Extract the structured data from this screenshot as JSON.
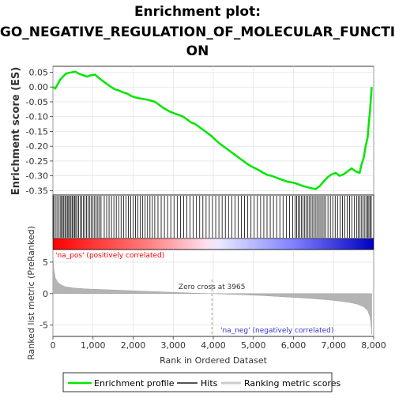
{
  "chart_data": {
    "type": "line",
    "title": "Enrichment plot:",
    "subtitle": "GO_NEGATIVE_REGULATION_OF_MOLECULAR_FUNCTION",
    "ylabel_top": "Enrichment score (ES)",
    "ylabel_bottom": "Ranked list metric (PreRanked)",
    "xlabel": "Rank in Ordered Dataset",
    "x_ticks": [
      0,
      1000,
      2000,
      3000,
      4000,
      5000,
      6000,
      7000,
      8000
    ],
    "x_tick_labels": [
      "0",
      "1,000",
      "2,000",
      "3,000",
      "4,000",
      "5,000",
      "6,000",
      "7,000",
      "8,000"
    ],
    "es_y_ticks": [
      0.05,
      0.0,
      -0.05,
      -0.1,
      -0.15,
      -0.2,
      -0.25,
      -0.3,
      -0.35
    ],
    "es_y_tick_labels": [
      "0.05",
      "0.00",
      "-0.05",
      "-0.10",
      "-0.15",
      "-0.20",
      "-0.25",
      "-0.30",
      "-0.35"
    ],
    "metric_y_ticks": [
      5,
      0,
      -5
    ],
    "metric_y_tick_labels": [
      "5",
      "0",
      "-5"
    ],
    "xlim": [
      0,
      8000
    ],
    "es_ylim": [
      -0.365,
      0.07
    ],
    "metric_ylim": [
      -6.8,
      7
    ],
    "grid": true,
    "series": [
      {
        "name": "Enrichment profile",
        "color": "#00e600",
        "x": [
          0,
          60,
          120,
          180,
          250,
          320,
          400,
          480,
          560,
          650,
          750,
          850,
          950,
          1050,
          1150,
          1250,
          1350,
          1450,
          1550,
          1650,
          1750,
          1850,
          1950,
          2050,
          2150,
          2250,
          2350,
          2450,
          2550,
          2650,
          2750,
          2850,
          2950,
          3050,
          3150,
          3250,
          3350,
          3450,
          3550,
          3650,
          3750,
          3850,
          3950,
          4050,
          4150,
          4250,
          4350,
          4450,
          4550,
          4650,
          4750,
          4850,
          4950,
          5050,
          5150,
          5250,
          5350,
          5450,
          5550,
          5650,
          5750,
          5850,
          5950,
          6050,
          6150,
          6250,
          6350,
          6450,
          6550,
          6650,
          6750,
          6850,
          6950,
          7050,
          7150,
          7250,
          7350,
          7450,
          7550,
          7650,
          7700,
          7750,
          7800,
          7850,
          7880,
          7910,
          7935,
          7950
        ],
        "values": [
          0.0,
          -0.005,
          0.01,
          0.025,
          0.035,
          0.045,
          0.048,
          0.05,
          0.052,
          0.045,
          0.04,
          0.035,
          0.04,
          0.042,
          0.03,
          0.02,
          0.01,
          0.0,
          -0.008,
          -0.012,
          -0.018,
          -0.022,
          -0.03,
          -0.035,
          -0.038,
          -0.04,
          -0.043,
          -0.046,
          -0.05,
          -0.06,
          -0.07,
          -0.078,
          -0.085,
          -0.09,
          -0.095,
          -0.1,
          -0.11,
          -0.12,
          -0.125,
          -0.135,
          -0.145,
          -0.155,
          -0.165,
          -0.178,
          -0.19,
          -0.2,
          -0.21,
          -0.22,
          -0.23,
          -0.24,
          -0.25,
          -0.26,
          -0.268,
          -0.275,
          -0.282,
          -0.29,
          -0.297,
          -0.3,
          -0.305,
          -0.31,
          -0.315,
          -0.32,
          -0.322,
          -0.325,
          -0.33,
          -0.335,
          -0.338,
          -0.342,
          -0.345,
          -0.335,
          -0.32,
          -0.305,
          -0.295,
          -0.29,
          -0.3,
          -0.295,
          -0.285,
          -0.275,
          -0.285,
          -0.29,
          -0.26,
          -0.24,
          -0.2,
          -0.17,
          -0.12,
          -0.08,
          -0.03,
          0.0
        ]
      }
    ],
    "hits": [
      20,
      60,
      100,
      140,
      180,
      210,
      240,
      270,
      300,
      330,
      360,
      390,
      420,
      450,
      480,
      510,
      540,
      570,
      600,
      640,
      680,
      720,
      760,
      800,
      840,
      880,
      920,
      960,
      1000,
      1040,
      1080,
      1120,
      1160,
      1200,
      1280,
      1340,
      1400,
      1460,
      1520,
      1580,
      1640,
      1700,
      1760,
      1820,
      1880,
      1940,
      2000,
      2060,
      2120,
      2180,
      2240,
      2300,
      2360,
      2420,
      2480,
      2540,
      2620,
      2700,
      2780,
      2860,
      2940,
      3020,
      3100,
      3180,
      3260,
      3340,
      3420,
      3500,
      3580,
      3660,
      3740,
      3820,
      3900,
      3980,
      4060,
      4140,
      4220,
      4300,
      4380,
      4460,
      4540,
      4620,
      4700,
      4780,
      4860,
      4940,
      5020,
      5100,
      5180,
      5260,
      5340,
      5420,
      5500,
      5580,
      5660,
      5740,
      5820,
      5900,
      5980,
      6040,
      6080,
      6120,
      6160,
      6200,
      6240,
      6280,
      6320,
      6360,
      6400,
      6440,
      6480,
      6520,
      6560,
      6600,
      6640,
      6680,
      6720,
      6760,
      6800,
      6860,
      6920,
      6980,
      7040,
      7100,
      7160,
      7220,
      7280,
      7340,
      7400,
      7460,
      7520,
      7580,
      7620,
      7660,
      7700,
      7740,
      7780,
      7820,
      7850,
      7880,
      7910,
      7940
    ],
    "metric_curve": {
      "x": [
        0,
        20,
        60,
        120,
        200,
        300,
        500,
        800,
        1200,
        1600,
        2000,
        2400,
        2800,
        3200,
        3600,
        3965,
        4400,
        4800,
        5200,
        5600,
        6000,
        6400,
        6800,
        7100,
        7400,
        7600,
        7750,
        7850,
        7900,
        7930,
        7950
      ],
      "y": [
        6.5,
        4.0,
        2.5,
        1.8,
        1.4,
        1.1,
        0.9,
        0.75,
        0.65,
        0.55,
        0.45,
        0.35,
        0.25,
        0.15,
        0.05,
        0.0,
        -0.1,
        -0.2,
        -0.3,
        -0.45,
        -0.6,
        -0.75,
        -0.95,
        -1.15,
        -1.4,
        -1.7,
        -2.1,
        -2.7,
        -3.5,
        -4.5,
        -6.5
      ]
    },
    "annotations": {
      "zero_cross": "Zero cross at 3965",
      "zero_cross_x": 3965,
      "pos_label": "'na_pos' (positively correlated)",
      "neg_label": "'na_neg' (negatively correlated)"
    },
    "legend": {
      "placement": "bottom",
      "items": [
        {
          "name": "Enrichment profile",
          "color": "#00e600"
        },
        {
          "name": "Hits",
          "color": "#333333"
        },
        {
          "name": "Ranking metric scores",
          "color": "#cccccc"
        }
      ]
    },
    "colors": {
      "es_line": "#00e600",
      "hit": "#000000",
      "metric_fill": "#b4b4b4",
      "pos_label": "#ff0000",
      "neg_label": "#0000ff",
      "grid": "#dddddd"
    }
  }
}
